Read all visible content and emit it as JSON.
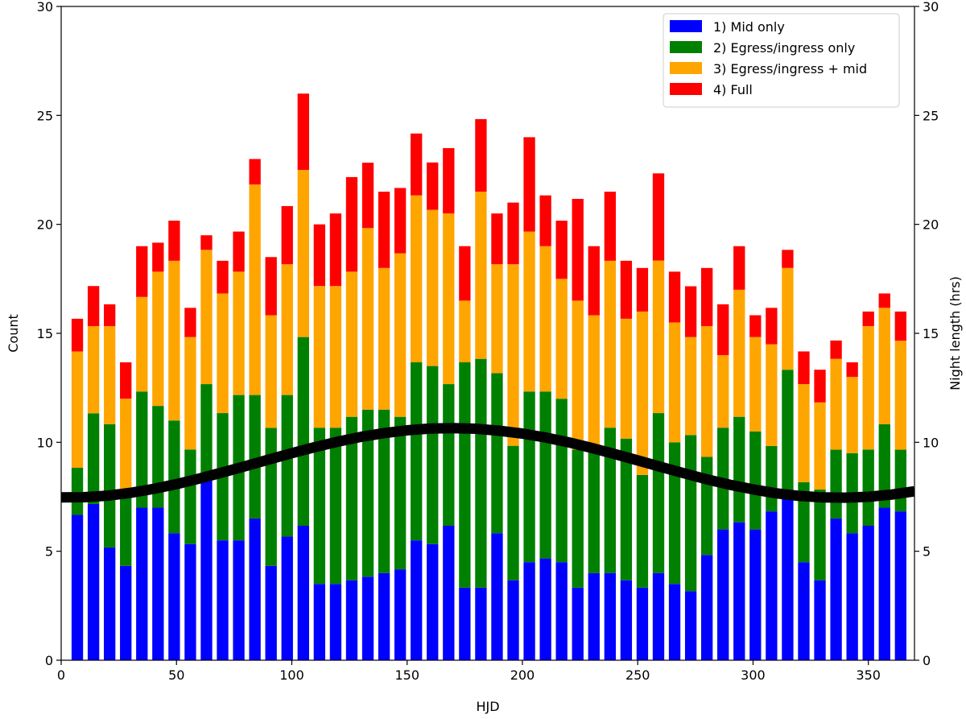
{
  "chart_data": {
    "type": "bar",
    "stacked": true,
    "title": "",
    "xlabel": "HJD",
    "ylabel": "Count",
    "y2label": "Night length (hrs)",
    "xlim": [
      0,
      370
    ],
    "ylim": [
      0,
      30
    ],
    "y2lim": [
      0,
      30
    ],
    "xticks": [
      "0",
      "50",
      "100",
      "150",
      "200",
      "250",
      "300",
      "350"
    ],
    "yticks": [
      "0",
      "5",
      "10",
      "15",
      "20",
      "25",
      "30"
    ],
    "y2ticks": [
      "0",
      "5",
      "10",
      "15",
      "20",
      "25",
      "30"
    ],
    "bar_width": 5,
    "x": [
      7,
      14,
      21,
      28,
      35,
      42,
      49,
      56,
      63,
      70,
      77,
      84,
      91,
      98,
      105,
      112,
      119,
      126,
      133,
      140,
      147,
      154,
      161,
      168,
      175,
      182,
      189,
      196,
      203,
      210,
      217,
      224,
      231,
      238,
      245,
      252,
      259,
      266,
      273,
      280,
      287,
      294,
      301,
      308,
      315,
      322,
      329,
      336,
      343,
      350,
      357,
      364
    ],
    "series": [
      {
        "name": "1) Mid only",
        "color": "#0000ff",
        "values": [
          6.67,
          7.17,
          5.17,
          4.33,
          7.0,
          7.0,
          5.83,
          5.33,
          8.33,
          5.5,
          5.5,
          6.5,
          4.33,
          5.67,
          6.17,
          3.5,
          3.5,
          3.67,
          3.83,
          4.0,
          4.17,
          5.5,
          5.33,
          6.17,
          3.33,
          3.33,
          5.83,
          3.67,
          4.5,
          4.67,
          4.5,
          3.33,
          4.0,
          4.0,
          3.67,
          3.33,
          4.0,
          3.5,
          3.17,
          4.83,
          6.0,
          6.33,
          6.0,
          6.83,
          7.83,
          4.5,
          3.67,
          6.5,
          5.83,
          6.17,
          7.0,
          6.83
        ]
      },
      {
        "name": "2) Egress/ingress only",
        "color": "#008000",
        "values": [
          2.16,
          4.16,
          5.66,
          3.17,
          5.33,
          4.67,
          5.17,
          4.34,
          4.34,
          5.84,
          6.67,
          5.67,
          6.33,
          6.5,
          8.66,
          7.17,
          7.17,
          7.5,
          7.67,
          7.5,
          7.0,
          8.17,
          8.17,
          6.5,
          10.34,
          10.5,
          7.34,
          6.17,
          7.83,
          7.66,
          7.5,
          6.34,
          5.83,
          6.67,
          6.5,
          5.17,
          7.34,
          6.5,
          7.16,
          4.5,
          4.67,
          4.84,
          4.5,
          3.0,
          5.5,
          3.67,
          4.16,
          3.16,
          3.67,
          3.5,
          3.83,
          2.83
        ]
      },
      {
        "name": "3) Egress/ingress + mid",
        "color": "#ffa500",
        "values": [
          5.34,
          4.0,
          4.5,
          4.5,
          4.34,
          6.16,
          7.33,
          5.16,
          6.16,
          5.49,
          5.66,
          9.66,
          5.17,
          6.0,
          7.67,
          6.5,
          6.5,
          6.66,
          8.33,
          6.5,
          7.5,
          7.66,
          7.17,
          7.83,
          2.83,
          7.67,
          5.0,
          8.33,
          7.34,
          6.67,
          5.5,
          6.83,
          6.0,
          7.66,
          5.5,
          7.5,
          7.0,
          5.5,
          4.5,
          6.0,
          3.33,
          5.83,
          4.33,
          4.67,
          4.67,
          4.5,
          4.0,
          4.17,
          3.5,
          5.66,
          5.34,
          5.0
        ]
      },
      {
        "name": "4) Full",
        "color": "#ff0000",
        "values": [
          1.5,
          1.84,
          1.0,
          1.67,
          2.33,
          1.33,
          1.84,
          1.34,
          0.67,
          1.5,
          1.84,
          1.17,
          2.67,
          2.67,
          3.5,
          2.83,
          3.33,
          4.34,
          3.0,
          3.5,
          3.0,
          2.84,
          2.17,
          3.0,
          2.5,
          3.33,
          2.33,
          2.83,
          4.33,
          2.33,
          2.67,
          4.67,
          3.17,
          3.17,
          2.66,
          2.0,
          4.0,
          2.33,
          2.33,
          2.67,
          2.33,
          2.0,
          1.0,
          1.67,
          0.83,
          1.5,
          1.5,
          0.84,
          0.67,
          0.67,
          0.66,
          1.34
        ]
      }
    ],
    "line": {
      "name": "Night length",
      "axis": "right",
      "color": "#000000",
      "description": "sinusoid: 9.05 - 1.6*cos(2*pi*(x+8)/365)",
      "x": [
        0,
        10,
        20,
        30,
        40,
        50,
        60,
        70,
        80,
        90,
        100,
        110,
        120,
        130,
        140,
        150,
        160,
        170,
        180,
        190,
        200,
        210,
        220,
        230,
        240,
        250,
        260,
        270,
        280,
        290,
        300,
        310,
        320,
        330,
        340,
        350,
        360,
        370
      ],
      "values": [
        7.47,
        7.48,
        7.55,
        7.68,
        7.86,
        8.08,
        8.34,
        8.62,
        8.91,
        9.21,
        9.5,
        9.78,
        10.03,
        10.25,
        10.42,
        10.55,
        10.63,
        10.65,
        10.62,
        10.53,
        10.4,
        10.22,
        10.0,
        9.74,
        9.46,
        9.17,
        8.87,
        8.58,
        8.3,
        8.05,
        7.84,
        7.66,
        7.54,
        7.47,
        7.46,
        7.5,
        7.6,
        7.75
      ]
    },
    "legend": {
      "position": "top-right",
      "entries": [
        "1) Mid only",
        "2) Egress/ingress only",
        "3) Egress/ingress + mid",
        "4) Full"
      ]
    },
    "grid": false
  }
}
